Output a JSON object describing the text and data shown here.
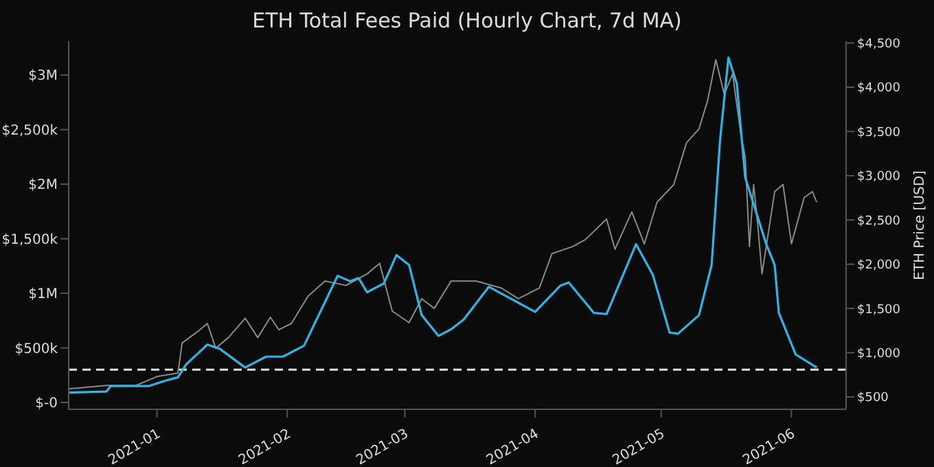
{
  "chart_data": {
    "type": "line",
    "title": "ETH Total Fees Paid (Hourly Chart, 7d MA)",
    "y2label": "ETH Price [USD]",
    "xlim": [
      "2020-12-11",
      "2021-06-14"
    ],
    "xticks": [
      "2021-01",
      "2021-02",
      "2021-03",
      "2021-04",
      "2021-05",
      "2021-06"
    ],
    "ylim": [
      -63000,
      3310000
    ],
    "yticks": [
      {
        "value": 0,
        "label": "$-0"
      },
      {
        "value": 500000,
        "label": "$500k"
      },
      {
        "value": 1000000,
        "label": "$1M"
      },
      {
        "value": 1500000,
        "label": "$1,500k"
      },
      {
        "value": 2000000,
        "label": "$2M"
      },
      {
        "value": 2500000,
        "label": "$2,500k"
      },
      {
        "value": 3000000,
        "label": "$3M"
      }
    ],
    "y2lim": [
      360,
      4520
    ],
    "y2ticks": [
      {
        "value": 500,
        "label": "$500"
      },
      {
        "value": 1000,
        "label": "$1,000"
      },
      {
        "value": 1500,
        "label": "$1,500"
      },
      {
        "value": 2000,
        "label": "$2,000"
      },
      {
        "value": 2500,
        "label": "$2,500"
      },
      {
        "value": 3000,
        "label": "$3,000"
      },
      {
        "value": 3500,
        "label": "$3,500"
      },
      {
        "value": 4000,
        "label": "$4,000"
      },
      {
        "value": 4500,
        "label": "$4,500"
      }
    ],
    "grid": false,
    "legend": false,
    "marker": "none",
    "ref_lines": [
      {
        "axis": "y",
        "value": 300000,
        "label": null,
        "color": "#e0e0e0",
        "line_style": "dashed"
      }
    ],
    "series": [
      {
        "color": "#8a8a8a",
        "axis": "y2",
        "x": [
          "2020-12-11",
          "2020-12-20",
          "2020-12-27",
          "2021-01-01",
          "2021-01-06",
          "2021-01-07",
          "2021-01-11",
          "2021-01-13",
          "2021-01-15",
          "2021-01-18",
          "2021-01-22",
          "2021-01-25",
          "2021-01-28",
          "2021-01-30",
          "2021-02-02",
          "2021-02-06",
          "2021-02-10",
          "2021-02-15",
          "2021-02-20",
          "2021-02-23",
          "2021-02-26",
          "2021-03-02",
          "2021-03-05",
          "2021-03-08",
          "2021-03-12",
          "2021-03-15",
          "2021-03-18",
          "2021-03-24",
          "2021-03-28",
          "2021-04-02",
          "2021-04-05",
          "2021-04-10",
          "2021-04-13",
          "2021-04-18",
          "2021-04-20",
          "2021-04-24",
          "2021-04-27",
          "2021-04-30",
          "2021-05-04",
          "2021-05-07",
          "2021-05-10",
          "2021-05-12",
          "2021-05-14",
          "2021-05-16",
          "2021-05-18",
          "2021-05-20",
          "2021-05-21",
          "2021-05-22",
          "2021-05-23",
          "2021-05-24",
          "2021-05-25",
          "2021-05-28",
          "2021-05-30",
          "2021-06-01",
          "2021-06-04",
          "2021-06-06",
          "2021-06-07"
        ],
        "values": [
          590,
          630,
          630,
          730,
          770,
          1110,
          1250,
          1330,
          1050,
          1170,
          1390,
          1170,
          1400,
          1260,
          1330,
          1640,
          1810,
          1760,
          1890,
          2010,
          1470,
          1340,
          1610,
          1500,
          1810,
          1810,
          1810,
          1730,
          1610,
          1730,
          2120,
          2200,
          2280,
          2510,
          2170,
          2590,
          2230,
          2700,
          2900,
          3370,
          3530,
          3840,
          4310,
          3920,
          4150,
          3450,
          3210,
          2200,
          2900,
          2430,
          1890,
          2820,
          2900,
          2230,
          2750,
          2820,
          2700
        ]
      },
      {
        "color": "#2bb5e8",
        "axis": "y",
        "x": [
          "2020-12-11",
          "2020-12-20",
          "2020-12-21",
          "2020-12-30",
          "2021-01-03",
          "2021-01-06",
          "2021-01-08",
          "2021-01-13",
          "2021-01-16",
          "2021-01-22",
          "2021-01-27",
          "2021-01-31",
          "2021-02-05",
          "2021-02-10",
          "2021-02-13",
          "2021-02-16",
          "2021-02-18",
          "2021-02-20",
          "2021-02-24",
          "2021-02-27",
          "2021-03-02",
          "2021-03-05",
          "2021-03-09",
          "2021-03-12",
          "2021-03-15",
          "2021-03-21",
          "2021-04-01",
          "2021-04-07",
          "2021-04-09",
          "2021-04-15",
          "2021-04-18",
          "2021-04-25",
          "2021-04-29",
          "2021-05-03",
          "2021-05-05",
          "2021-05-10",
          "2021-05-13",
          "2021-05-15",
          "2021-05-17",
          "2021-05-19",
          "2021-05-21",
          "2021-05-26",
          "2021-05-28",
          "2021-05-29",
          "2021-06-02",
          "2021-06-07"
        ],
        "values": [
          90000,
          100000,
          150000,
          150000,
          200000,
          230000,
          350000,
          530000,
          490000,
          320000,
          420000,
          420000,
          520000,
          920000,
          1160000,
          1110000,
          1140000,
          1010000,
          1090000,
          1350000,
          1260000,
          800000,
          610000,
          670000,
          760000,
          1060000,
          830000,
          1070000,
          1100000,
          820000,
          810000,
          1450000,
          1170000,
          640000,
          630000,
          800000,
          1260000,
          2400000,
          3160000,
          2920000,
          2060000,
          1450000,
          1260000,
          820000,
          440000,
          320000
        ]
      }
    ]
  }
}
